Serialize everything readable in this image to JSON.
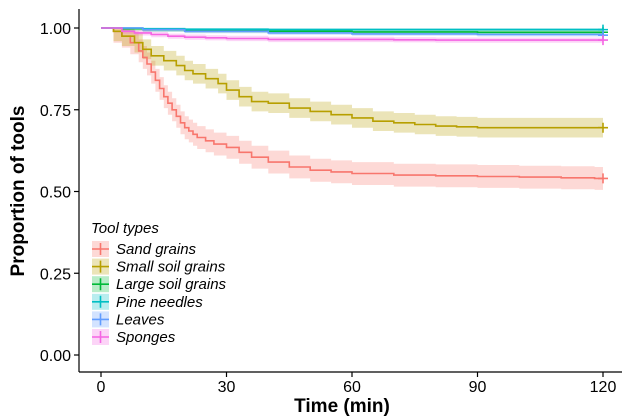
{
  "chart_data": {
    "type": "line",
    "subtype": "survival step curve with confidence bands",
    "title": "",
    "xlabel": "Time (min)",
    "ylabel": "Proportion of tools",
    "xlim": [
      0,
      120
    ],
    "ylim": [
      0,
      1.0
    ],
    "x_ticks": [
      0,
      30,
      60,
      90,
      120
    ],
    "x_tick_labels": [
      "0",
      "30",
      "60",
      "90",
      "120"
    ],
    "y_ticks": [
      0,
      0.25,
      0.5,
      0.75,
      1.0
    ],
    "y_tick_labels": [
      "0.00",
      "0.25",
      "0.50",
      "0.75",
      "1.00"
    ],
    "grid": false,
    "legend": {
      "title": "Tool types",
      "placement": "bottom-left"
    },
    "series": [
      {
        "name": "Sand grains",
        "color": "#F8766D",
        "x": [
          0,
          3,
          5,
          7,
          9,
          10,
          11,
          12,
          13,
          14,
          15,
          16,
          17,
          18,
          19,
          20,
          21,
          22,
          23,
          25,
          27,
          30,
          33,
          36,
          40,
          45,
          50,
          55,
          60,
          70,
          80,
          90,
          100,
          110,
          118,
          120
        ],
        "y": [
          1.0,
          0.99,
          0.975,
          0.955,
          0.93,
          0.91,
          0.89,
          0.865,
          0.84,
          0.815,
          0.79,
          0.77,
          0.75,
          0.73,
          0.71,
          0.695,
          0.685,
          0.675,
          0.665,
          0.655,
          0.645,
          0.635,
          0.62,
          0.605,
          0.59,
          0.575,
          0.565,
          0.56,
          0.555,
          0.55,
          0.548,
          0.546,
          0.544,
          0.542,
          0.54,
          0.54
        ],
        "ci_halfwidth": 0.035
      },
      {
        "name": "Small soil grains",
        "color": "#B79F00",
        "x": [
          0,
          3,
          5,
          8,
          10,
          12,
          15,
          18,
          20,
          22,
          25,
          28,
          30,
          33,
          36,
          40,
          45,
          50,
          55,
          60,
          65,
          70,
          75,
          80,
          85,
          90,
          100,
          110,
          120
        ],
        "y": [
          1.0,
          0.99,
          0.975,
          0.955,
          0.935,
          0.915,
          0.9,
          0.885,
          0.87,
          0.86,
          0.845,
          0.83,
          0.81,
          0.79,
          0.775,
          0.77,
          0.755,
          0.745,
          0.735,
          0.725,
          0.715,
          0.71,
          0.705,
          0.7,
          0.698,
          0.695,
          0.695,
          0.695,
          0.695
        ],
        "ci_halfwidth": 0.03
      },
      {
        "name": "Large soil grains",
        "color": "#00BA38",
        "x": [
          0,
          5,
          10,
          20,
          40,
          60,
          90,
          120
        ],
        "y": [
          1.0,
          0.998,
          0.995,
          0.992,
          0.99,
          0.988,
          0.987,
          0.987
        ],
        "ci_halfwidth": 0.006
      },
      {
        "name": "Pine needles",
        "color": "#00BFC4",
        "x": [
          0,
          10,
          20,
          40,
          60,
          90,
          120
        ],
        "y": [
          1.0,
          0.998,
          0.996,
          0.995,
          0.995,
          0.995,
          0.995
        ],
        "ci_halfwidth": 0.004
      },
      {
        "name": "Leaves",
        "color": "#619CFF",
        "x": [
          0,
          10,
          20,
          40,
          60,
          90,
          120
        ],
        "y": [
          1.0,
          0.995,
          0.99,
          0.985,
          0.982,
          0.98,
          0.978
        ],
        "ci_halfwidth": 0.006
      },
      {
        "name": "Sponges",
        "color": "#F564E3",
        "x": [
          0,
          5,
          8,
          12,
          16,
          20,
          25,
          30,
          40,
          50,
          60,
          70,
          80,
          90,
          100,
          110,
          120
        ],
        "y": [
          1.0,
          0.99,
          0.985,
          0.98,
          0.975,
          0.972,
          0.97,
          0.968,
          0.965,
          0.965,
          0.965,
          0.964,
          0.963,
          0.963,
          0.963,
          0.963,
          0.963
        ],
        "ci_halfwidth": 0.008
      }
    ]
  }
}
